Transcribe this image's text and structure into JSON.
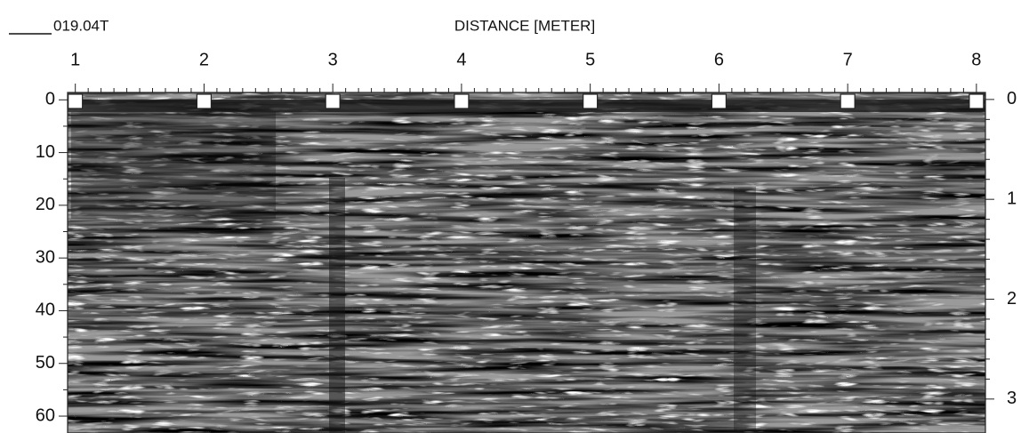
{
  "chart_data": {
    "type": "radargram",
    "title": "019.04T",
    "xlabel": "DISTANCE [METER]",
    "xlim": [
      0.94,
      8.07
    ],
    "xticks": [
      1,
      2,
      3,
      4,
      5,
      6,
      7,
      8
    ],
    "ylim": [
      -1.4,
      63.2
    ],
    "yticks": [
      0,
      10,
      20,
      30,
      40,
      50,
      60
    ],
    "y2lim": [
      -0.07,
      3.34
    ],
    "y2ticks": [
      0,
      1,
      2,
      3
    ]
  }
}
